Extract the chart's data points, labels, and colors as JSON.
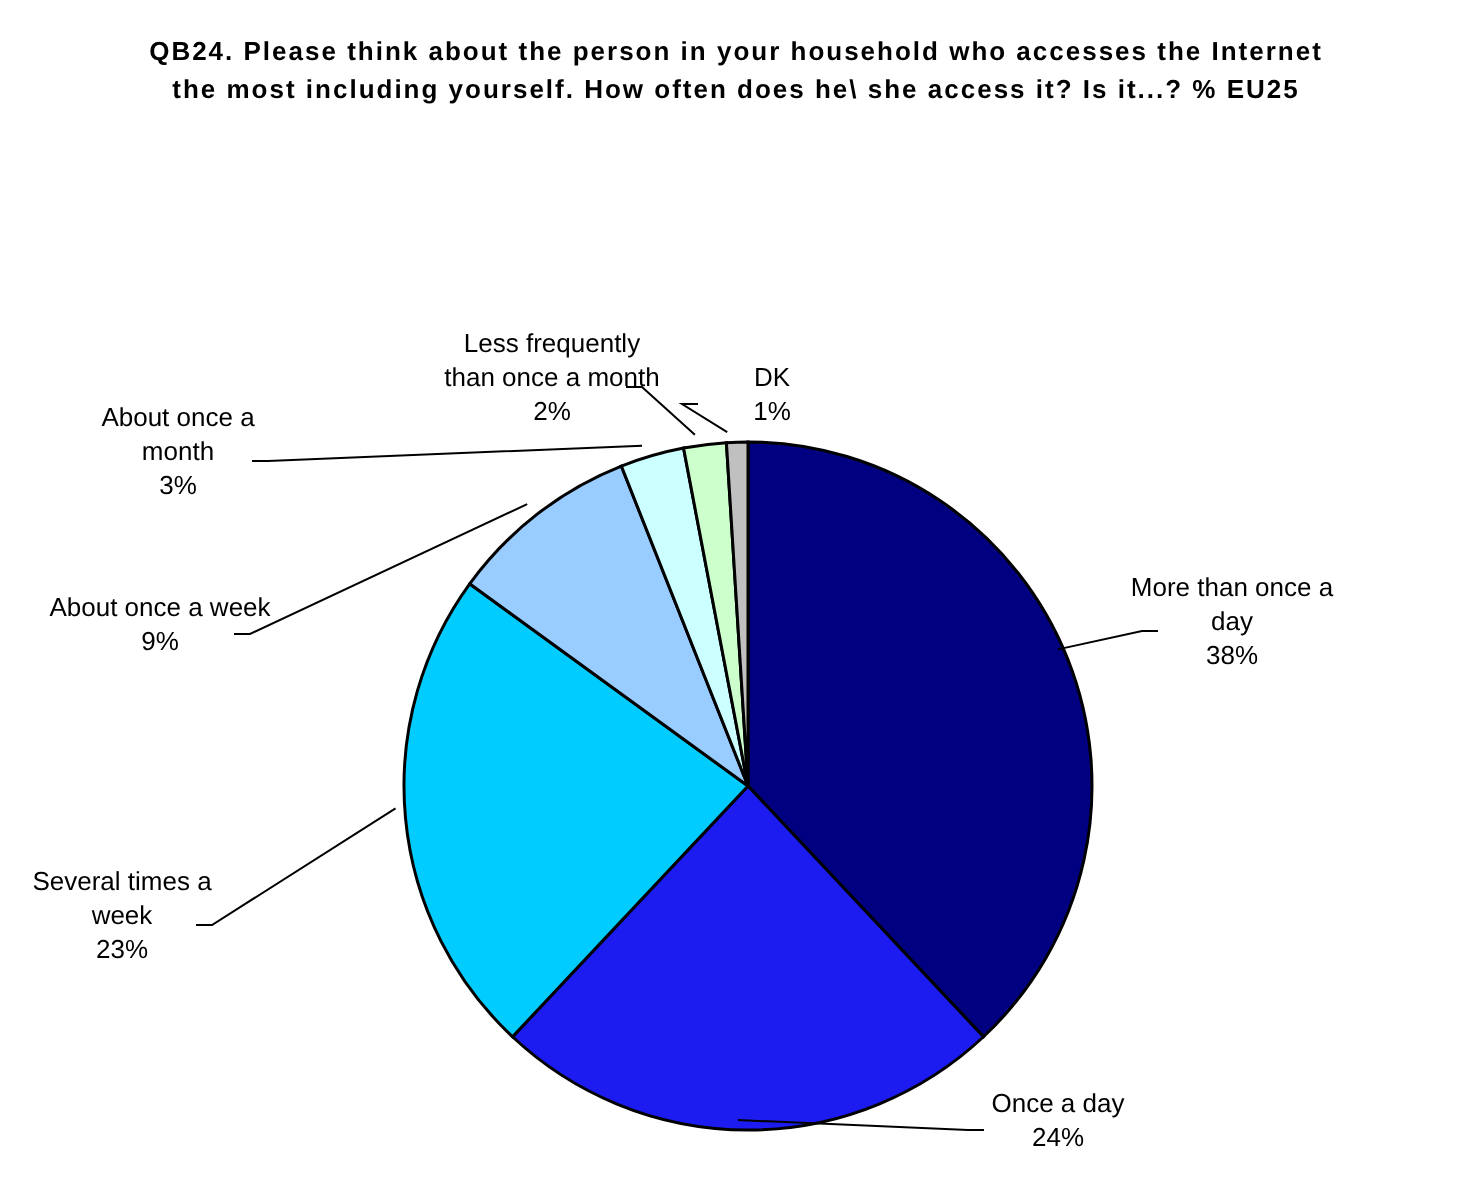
{
  "chart_data": {
    "type": "pie",
    "title": "QB24. Please think about the person in your household who accesses the Internet the most including yourself. How often does he\\ she access it? Is it...? % EU25",
    "categories": [
      "More than once a day",
      "Once a day",
      "Several times a week",
      "About once a week",
      "About once a month",
      "Less frequently than once a month",
      "DK"
    ],
    "values": [
      38,
      24,
      23,
      9,
      3,
      2,
      1
    ],
    "value_labels": [
      "38%",
      "24%",
      "23%",
      "9%",
      "3%",
      "2%",
      "1%"
    ],
    "colors": [
      "#000080",
      "#1c1cf0",
      "#00ccff",
      "#99ccff",
      "#ccffff",
      "#ccffcc",
      "#c0c0c0"
    ],
    "legend": false
  }
}
